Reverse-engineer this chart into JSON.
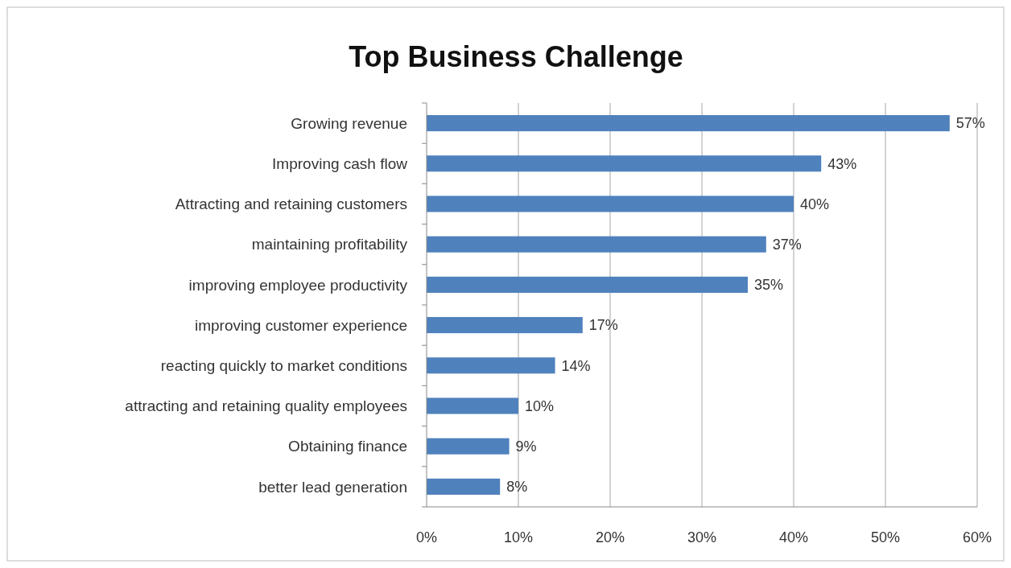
{
  "chart_data": {
    "type": "bar",
    "orientation": "horizontal",
    "title": "Top Business Challenge",
    "categories": [
      "Growing revenue",
      "Improving cash flow",
      "Attracting and retaining customers",
      "maintaining profitability",
      "improving employee productivity",
      "improving customer experience",
      "reacting quickly to market conditions ",
      "attracting and retaining quality employees",
      "Obtaining finance",
      "better lead generation"
    ],
    "values": [
      57,
      43,
      40,
      37,
      35,
      17,
      14,
      10,
      9,
      8
    ],
    "value_labels": [
      "57%",
      "43%",
      "40%",
      "37%",
      "35%",
      "17%",
      "14%",
      "10%",
      "9%",
      "8%"
    ],
    "color": "#4f81bd",
    "xlim": [
      0,
      60
    ],
    "xticks": [
      {
        "value": 0,
        "label": "0%"
      },
      {
        "value": 10,
        "label": "10%"
      },
      {
        "value": 20,
        "label": "20%"
      },
      {
        "value": 30,
        "label": "30%"
      },
      {
        "value": 40,
        "label": "40%"
      },
      {
        "value": 50,
        "label": "50%"
      },
      {
        "value": 60,
        "label": "60%"
      }
    ],
    "grid": "x"
  }
}
